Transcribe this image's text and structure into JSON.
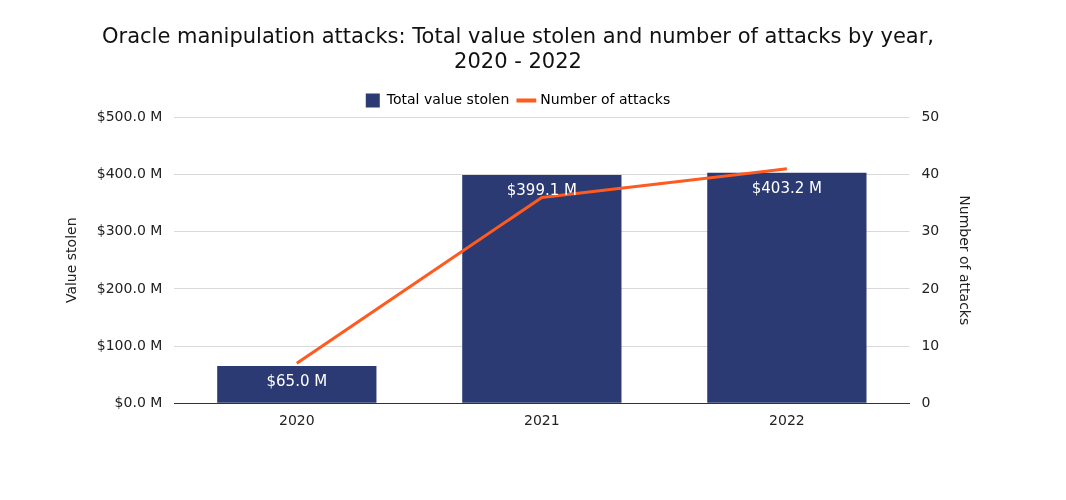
{
  "chart_data": {
    "type": "bar",
    "title": "Oracle manipulation attacks: Total value stolen and number of attacks by year,\n2020 - 2022",
    "categories": [
      "2020",
      "2021",
      "2022"
    ],
    "series": [
      {
        "name": "Total value stolen",
        "color": "#2b3a72",
        "values": [
          65.0,
          399.1,
          403.2
        ],
        "value_labels": [
          "$65.0 M",
          "$399.1 M",
          "$403.2 M"
        ]
      },
      {
        "name": "Number of attacks",
        "type": "line",
        "axis": "y2",
        "color": "#ff5a1f",
        "values": [
          7,
          36,
          41
        ]
      }
    ],
    "ylabel": "Value stolen",
    "y2label": "Number of attacks",
    "ylim": [
      0,
      500
    ],
    "yticks": [
      {
        "value": 0,
        "label": "$0.0 M"
      },
      {
        "value": 100,
        "label": "$100.0 M"
      },
      {
        "value": 200,
        "label": "$200.0 M"
      },
      {
        "value": 300,
        "label": "$300.0 M"
      },
      {
        "value": 400,
        "label": "$400.0 M"
      },
      {
        "value": 500,
        "label": "$500.0 M"
      }
    ],
    "y2lim": [
      0,
      50
    ],
    "y2ticks": [
      0,
      10,
      20,
      30,
      40,
      50
    ],
    "grid": "y",
    "legend": "top",
    "marker": "none",
    "line_style": "solid"
  }
}
